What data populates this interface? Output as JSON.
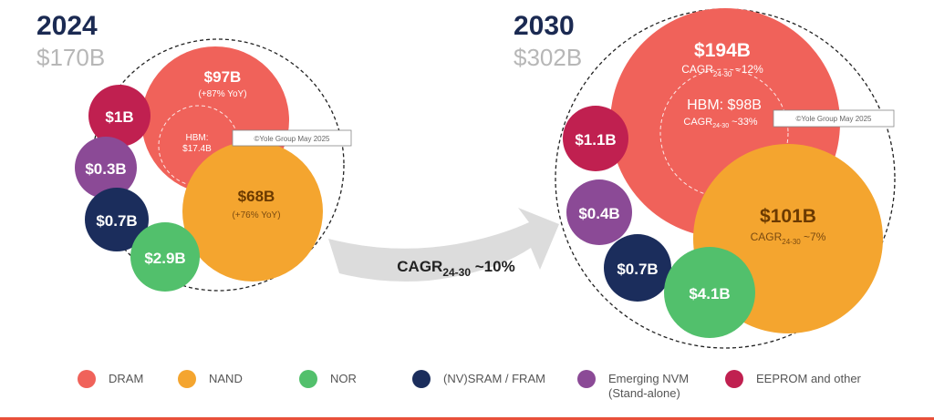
{
  "colors": {
    "DRAM": "#f0625a",
    "NAND": "#f4a52f",
    "NOR": "#52c06c",
    "SRAM": "#1b2d5c",
    "NVM": "#8b4a96",
    "EEPROM": "#c02050",
    "arrow": "#dcdcdc",
    "title": "#1b2a52",
    "total": "#b7b7b7"
  },
  "chart_data": {
    "type": "bubble",
    "title": "",
    "units": "USD billions",
    "growth_label": {
      "main": "CAGR",
      "sub": "24-30",
      "value": " ~10%"
    },
    "watermark": "©Yole Group May 2025",
    "panels": [
      {
        "year": "2024",
        "total": "$170B",
        "bubbles": [
          {
            "segment": "DRAM",
            "value_label": "$97B",
            "note": "(+87% YoY)",
            "value": 97
          },
          {
            "segment": "HBM",
            "value_label": "HBM:",
            "value_label2": "$17.4B",
            "value": 17.4
          },
          {
            "segment": "NAND",
            "value_label": "$68B",
            "note": "(+76% YoY)",
            "value": 68
          },
          {
            "segment": "EEPROM",
            "value_label": "$1B",
            "value": 1
          },
          {
            "segment": "NVM",
            "value_label": "$0.3B",
            "value": 0.3
          },
          {
            "segment": "SRAM",
            "value_label": "$0.7B",
            "value": 0.7
          },
          {
            "segment": "NOR",
            "value_label": "$2.9B",
            "value": 2.9
          }
        ]
      },
      {
        "year": "2030",
        "total": "$302B",
        "bubbles": [
          {
            "segment": "DRAM",
            "value_label": "$194B",
            "note_main": "CAGR",
            "note_sub": "24-30",
            "note_tail": " ~12%",
            "value": 194
          },
          {
            "segment": "HBM",
            "value_label": "HBM: $98B",
            "note_main": "CAGR",
            "note_sub": "24-30",
            "note_tail": " ~33%",
            "value": 98
          },
          {
            "segment": "NAND",
            "value_label": "$101B",
            "note_main": "CAGR",
            "note_sub": "24-30",
            "note_tail": " ~7%",
            "value": 101
          },
          {
            "segment": "EEPROM",
            "value_label": "$1.1B",
            "value": 1.1
          },
          {
            "segment": "NVM",
            "value_label": "$0.4B",
            "value": 0.4
          },
          {
            "segment": "SRAM",
            "value_label": "$0.7B",
            "value": 0.7
          },
          {
            "segment": "NOR",
            "value_label": "$4.1B",
            "value": 4.1
          }
        ]
      }
    ],
    "legend": [
      {
        "key": "DRAM",
        "label": "DRAM"
      },
      {
        "key": "NAND",
        "label": "NAND"
      },
      {
        "key": "NOR",
        "label": "NOR"
      },
      {
        "key": "SRAM",
        "label": "(NV)SRAM / FRAM"
      },
      {
        "key": "NVM",
        "label": "Emerging NVM",
        "label2": "(Stand-alone)"
      },
      {
        "key": "EEPROM",
        "label": "EEPROM and other"
      }
    ]
  }
}
